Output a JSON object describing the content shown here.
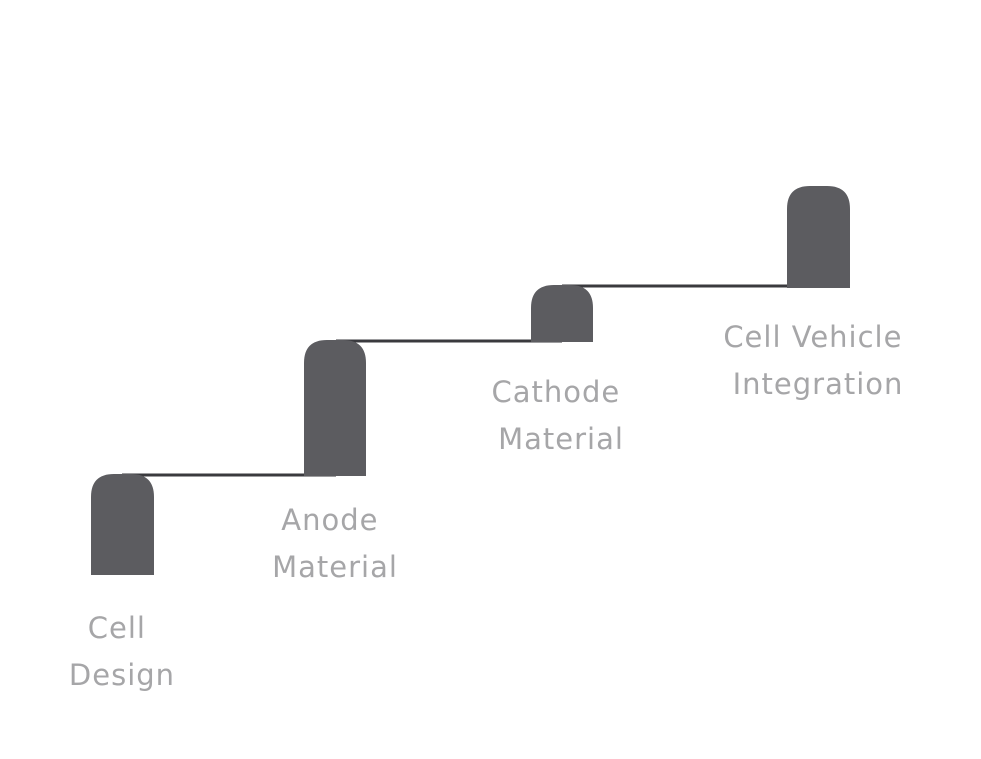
{
  "colors": {
    "background": "#ffffff",
    "block": "#5c5c60",
    "line": "#3a3a3e",
    "label": "#a6a6a8"
  },
  "steps": [
    {
      "label_line1": "Cell",
      "label_line2": "Design"
    },
    {
      "label_line1": "Anode",
      "label_line2": "Material"
    },
    {
      "label_line1": "Cathode",
      "label_line2": "Material"
    },
    {
      "label_line1": "Cell Vehicle",
      "label_line2": "Integration"
    }
  ]
}
